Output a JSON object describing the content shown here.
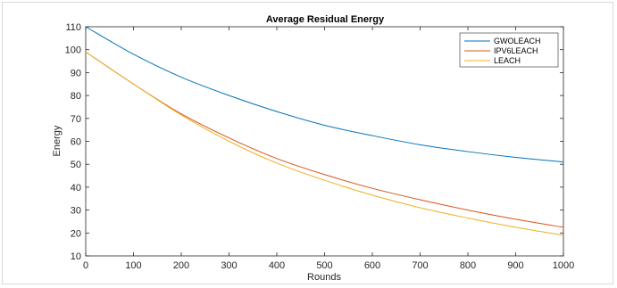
{
  "chart_data": {
    "type": "line",
    "title": "Average Residual Energy",
    "xlabel": "Rounds",
    "ylabel": "Energy",
    "xlim": [
      0,
      1000
    ],
    "ylim": [
      10,
      110
    ],
    "xticks": [
      "0",
      "100",
      "200",
      "300",
      "400",
      "500",
      "600",
      "700",
      "800",
      "900",
      "1000"
    ],
    "yticks": [
      "10",
      "20",
      "30",
      "40",
      "50",
      "60",
      "70",
      "80",
      "90",
      "100",
      "110"
    ],
    "grid": false,
    "legend_position": "top-right",
    "x": [
      0,
      100,
      200,
      300,
      400,
      500,
      600,
      700,
      800,
      900,
      1000
    ],
    "series": [
      {
        "name": "GWOLEACH",
        "color": "#0072bd",
        "values": [
          110,
          98,
          88,
          80,
          73,
          67,
          62.5,
          58.5,
          55.5,
          53,
          51
        ]
      },
      {
        "name": "IPV6LEACH",
        "color": "#d95319",
        "values": [
          99,
          85,
          72,
          61.5,
          52.5,
          45.5,
          39.5,
          34.5,
          30,
          26,
          22.5
        ]
      },
      {
        "name": "LEACH",
        "color": "#edb120",
        "values": [
          99,
          85,
          71.5,
          60,
          50.5,
          43,
          36.5,
          31,
          26.5,
          22.5,
          19
        ]
      }
    ]
  }
}
